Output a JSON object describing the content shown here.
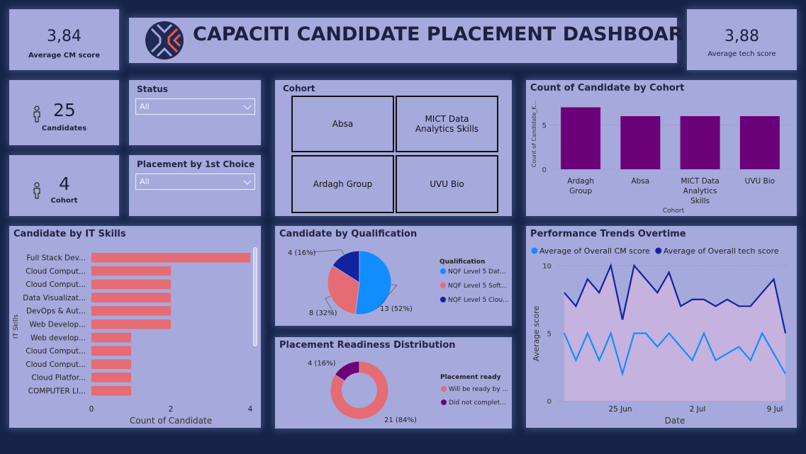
{
  "header": {
    "title": "CAPACITI CANDIDATE PLACEMENT DASHBOARD"
  },
  "kpis": {
    "cm": {
      "value": "3,84",
      "label": "Average CM score"
    },
    "tech": {
      "value": "3,88",
      "label": "Average tech score"
    },
    "candidates": {
      "value": "25",
      "label": "Candidates",
      "icon": "person-icon"
    },
    "cohort": {
      "value": "4",
      "label": "Cohort",
      "icon": "person-icon"
    }
  },
  "slicers": {
    "status": {
      "title": "Status",
      "value": "All"
    },
    "placement": {
      "title": "Placement by 1st Choice",
      "value": "All"
    }
  },
  "cohort_tiles": {
    "title": "Cohort",
    "items": [
      "Absa",
      "MICT Data Analytics Skills",
      "Ardagh Group",
      "UVU Bio"
    ]
  },
  "colors": {
    "background": "#17244a",
    "card": "#a6a9dc",
    "purple": "#6b0079",
    "salmon": "#e56b74",
    "blue": "#118dff",
    "navy": "#12239e",
    "area": "#c9b3df"
  },
  "chart_data": [
    {
      "id": "cohort_count",
      "type": "bar",
      "title": "Count of Candidate by Cohort",
      "xlabel": "Cohort",
      "ylabel": "Count of Candidate_K...",
      "categories": [
        "Ardagh Group",
        "Absa",
        "MICT Data Analytics Skills",
        "UVU Bio"
      ],
      "category_lines": [
        [
          "Ardagh",
          "Group"
        ],
        [
          "Absa"
        ],
        [
          "MICT Data",
          "Analytics",
          "Skills"
        ],
        [
          "UVU Bio"
        ]
      ],
      "values": [
        7,
        6,
        6,
        6
      ],
      "ylim": [
        0,
        8
      ],
      "yticks": [
        "0",
        "5"
      ]
    },
    {
      "id": "it_skills",
      "type": "bar",
      "orientation": "horizontal",
      "title": "Candidate by IT Skills",
      "xlabel": "Count of Candidate",
      "ylabel": "IT Skills",
      "categories": [
        "Full Stack Dev...",
        "Cloud Comput...",
        "Cloud Comput...",
        "Data Visualizat...",
        "DevOps & Aut...",
        "Web Develop...",
        "Web develop...",
        "Cloud Comput...",
        "Cloud Comput...",
        "Cloud Platfor...",
        "COMPUTER LI..."
      ],
      "values": [
        4,
        2,
        2,
        2,
        2,
        2,
        1,
        1,
        1,
        1,
        1
      ],
      "xlim": [
        0,
        4
      ],
      "xticks": [
        "0",
        "2",
        "4"
      ]
    },
    {
      "id": "qualification",
      "type": "pie",
      "title": "Candidate by Qualification",
      "legend_title": "Qualification",
      "slices": [
        {
          "label": "NQF Level 5 Dat...",
          "value": 13,
          "display": "13 (52%)"
        },
        {
          "label": "NQF Level 5 Soft...",
          "value": 8,
          "display": "8 (32%)"
        },
        {
          "label": "NQF Level 5 Clou...",
          "value": 4,
          "display": "4 (16%)"
        }
      ]
    },
    {
      "id": "readiness",
      "type": "pie",
      "donut": true,
      "title": "Placement Readiness Distribution",
      "legend_title": "Placement ready",
      "slices": [
        {
          "label": "Will be ready by ...",
          "value": 21,
          "display": "21 (84%)"
        },
        {
          "label": "Did not complet...",
          "value": 4,
          "display": "4 (16%)"
        }
      ]
    },
    {
      "id": "trends",
      "type": "line",
      "title": "Performance Trends Overtime",
      "xlabel": "Date",
      "ylabel": "Average score",
      "ylim": [
        0,
        10
      ],
      "yticks": [
        "0",
        "5",
        "10"
      ],
      "xticks": [
        "25 Jun",
        "2 Jul",
        "9 Jul"
      ],
      "series": [
        {
          "name": "Average of Overall CM score",
          "values": [
            5,
            3,
            5,
            3,
            5,
            2,
            5,
            5,
            4,
            5,
            4,
            3,
            5,
            3,
            3.5,
            4,
            3,
            5,
            3.5,
            2
          ]
        },
        {
          "name": "Average of Overall tech score",
          "values": [
            8,
            7,
            9,
            8,
            10,
            6,
            10,
            9,
            8,
            9.5,
            7,
            7.5,
            7.5,
            7,
            7.5,
            7,
            7,
            8,
            9,
            5
          ]
        }
      ]
    }
  ]
}
